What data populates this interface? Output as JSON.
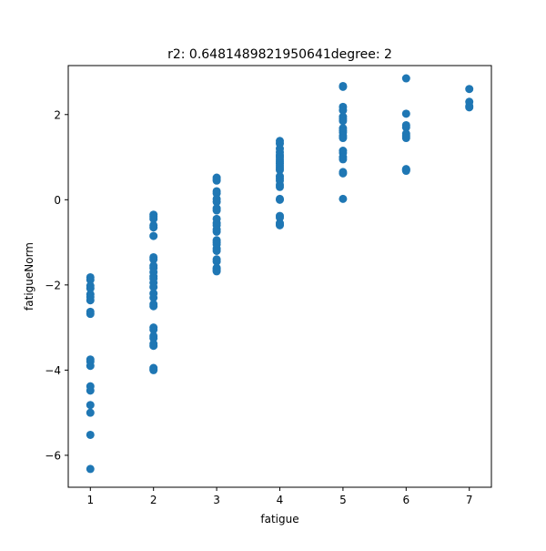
{
  "chart_data": {
    "type": "scatter",
    "title": "r2: 0.6481489821950641degree: 2",
    "xlabel": "fatigue",
    "ylabel": "fatigueNorm",
    "xlim": [
      0.65,
      7.35
    ],
    "ylim": [
      -6.75,
      3.15
    ],
    "xticks": [
      1,
      2,
      3,
      4,
      5,
      6,
      7
    ],
    "yticks": [
      -6,
      -4,
      -2,
      0,
      2
    ],
    "grid": false,
    "marker_color": "#1f77b4",
    "series": [
      {
        "x": [
          1,
          1,
          1,
          1,
          1,
          1,
          1,
          1,
          1,
          1,
          1,
          1,
          1,
          1,
          1,
          1,
          1,
          1,
          2,
          2,
          2,
          2,
          2,
          2,
          2,
          2,
          2,
          2,
          2,
          2,
          2,
          2,
          2,
          2,
          2,
          2,
          2,
          2,
          2,
          2,
          2,
          2,
          2,
          2,
          2,
          2,
          3,
          3,
          3,
          3,
          3,
          3,
          3,
          3,
          3,
          3,
          3,
          3,
          3,
          3,
          3,
          3,
          3,
          3,
          3,
          3,
          3,
          3,
          3,
          3,
          3,
          4,
          4,
          4,
          4,
          4,
          4,
          4,
          4,
          4,
          4,
          4,
          4,
          4,
          4,
          4,
          4,
          4,
          4,
          4,
          4,
          4,
          4,
          4,
          4,
          5,
          5,
          5,
          5,
          5,
          5,
          5,
          5,
          5,
          5,
          5,
          5,
          5,
          5,
          5,
          5,
          5,
          5,
          5,
          6,
          6,
          6,
          6,
          6,
          6,
          6,
          6,
          6,
          6,
          7,
          7,
          7,
          7
        ],
        "y": [
          -1.82,
          -1.88,
          -2.02,
          -2.08,
          -2.22,
          -2.28,
          -2.36,
          -2.63,
          -2.68,
          -3.75,
          -3.8,
          -3.9,
          -4.38,
          -4.48,
          -4.82,
          -5.0,
          -5.52,
          -6.32,
          -0.35,
          -0.4,
          -0.45,
          -0.6,
          -0.65,
          -0.85,
          -1.35,
          -1.4,
          -1.55,
          -1.6,
          -1.7,
          -1.8,
          -1.85,
          -1.95,
          -2.05,
          -2.2,
          -2.3,
          -2.45,
          -2.5,
          -3.0,
          -3.05,
          -3.2,
          -3.25,
          -3.38,
          -3.43,
          -3.95,
          -3.98,
          -4.0,
          0.52,
          0.48,
          0.45,
          0.2,
          0.15,
          0.02,
          -0.05,
          -0.2,
          -0.25,
          -0.45,
          -0.55,
          -0.6,
          -0.7,
          -0.75,
          -0.95,
          -1.0,
          -1.05,
          -1.15,
          -1.2,
          -1.4,
          -1.45,
          -1.6,
          -1.63,
          -1.66,
          -1.68,
          1.38,
          1.32,
          1.2,
          1.12,
          1.05,
          1.0,
          0.95,
          0.9,
          0.85,
          0.8,
          0.75,
          0.7,
          0.55,
          0.5,
          0.45,
          0.35,
          0.3,
          0.02,
          0.0,
          -0.38,
          -0.42,
          -0.55,
          -0.58,
          -0.6,
          2.67,
          2.65,
          2.18,
          2.1,
          1.95,
          1.9,
          1.85,
          1.68,
          1.62,
          1.58,
          1.5,
          1.45,
          1.15,
          1.1,
          1.0,
          0.95,
          0.65,
          0.62,
          0.02,
          2.85,
          2.02,
          1.75,
          1.7,
          1.55,
          1.5,
          1.45,
          0.72,
          0.7,
          0.68,
          2.6,
          2.3,
          2.2,
          2.17
        ]
      }
    ]
  }
}
